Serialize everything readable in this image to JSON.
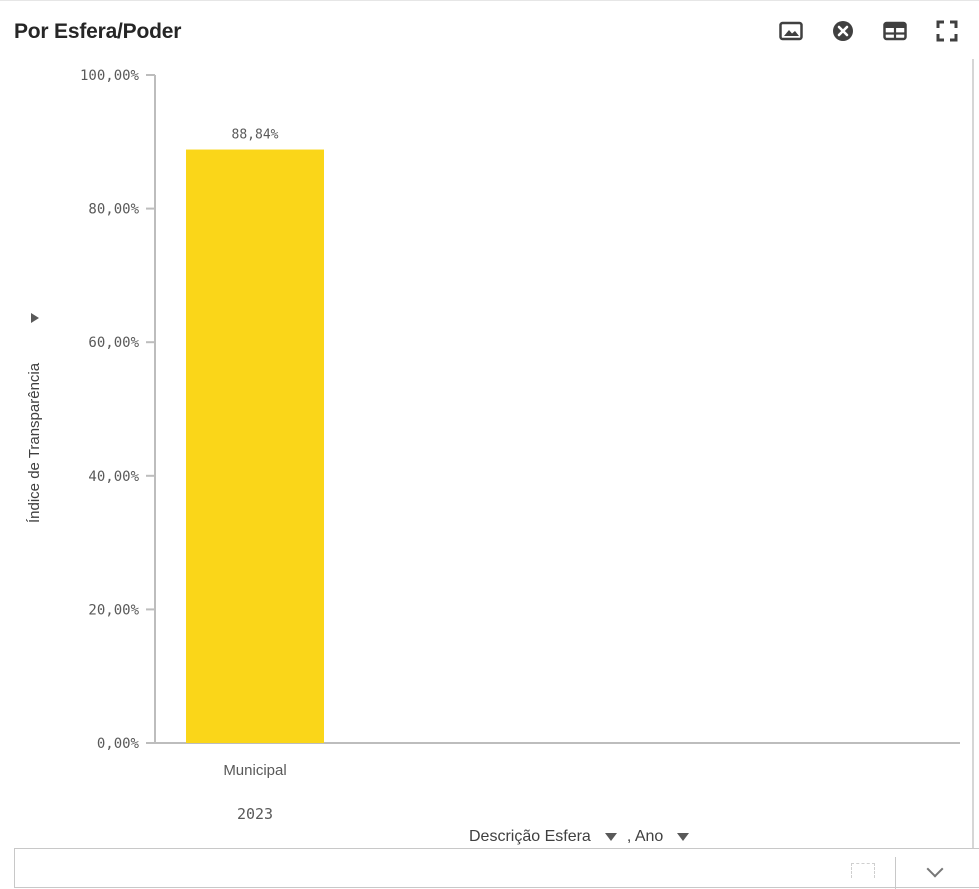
{
  "header": {
    "title": "Por Esfera/Poder"
  },
  "toolbar": {
    "items": [
      {
        "icon": "image-icon"
      },
      {
        "icon": "close-circle-icon"
      },
      {
        "icon": "table-icon"
      },
      {
        "icon": "fullscreen-icon"
      }
    ]
  },
  "chart_data": {
    "type": "bar",
    "ylabel": "Índice de Transparência",
    "ylim": [
      0,
      100
    ],
    "y_ticks": [
      0,
      20,
      40,
      60,
      80,
      100
    ],
    "y_tick_labels": [
      "0,00%",
      "20,00%",
      "40,00%",
      "60,00%",
      "80,00%",
      "100,00%"
    ],
    "categories": [
      "Municipal"
    ],
    "category_groups": [
      "2023"
    ],
    "values": [
      88.84
    ],
    "data_labels": [
      "88,84%"
    ],
    "bar_color": "#fad619",
    "grid": false,
    "xlabel_dimensions": [
      "Descrição Esfera",
      ", Ano"
    ]
  }
}
